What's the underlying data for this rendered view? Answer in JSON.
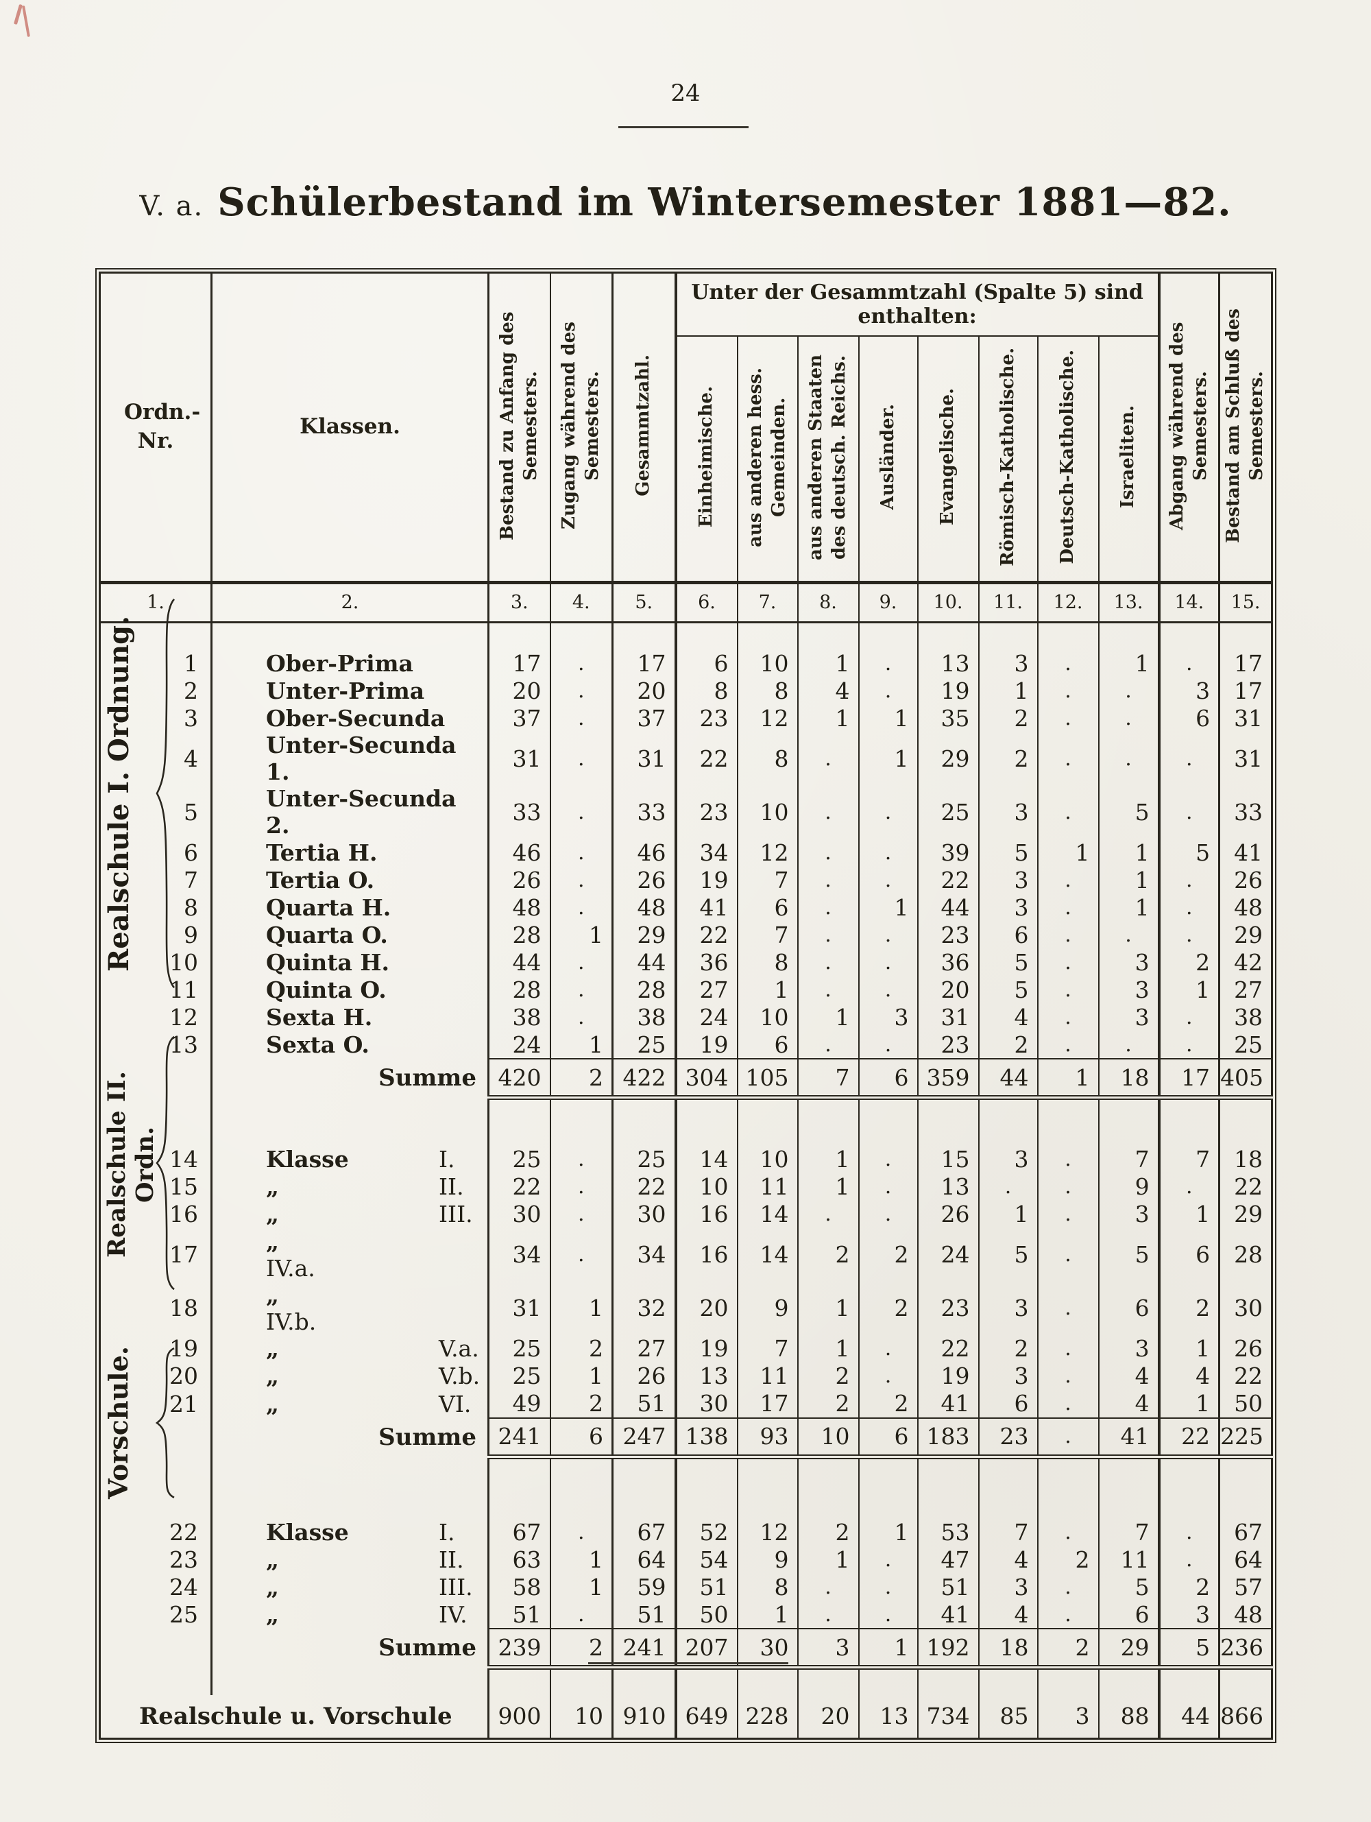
{
  "page": {
    "number": "24"
  },
  "title": {
    "prefix": "V. a.",
    "main": "Schülerbestand im Wintersemester 1881—82."
  },
  "table": {
    "header": {
      "ordn_nr": "Ordn.- Nr.",
      "klassen": "Klassen.",
      "col3": "Bestand zu Anfang des Semesters.",
      "col4": "Zugang während des Semesters.",
      "col5": "Gesammtzahl.",
      "group": "Unter der Gesammtzahl (Spalte 5) sind enthalten:",
      "col6": "Einheimische.",
      "col7": "aus anderen hess. Gemeinden.",
      "col8": "aus anderen Staaten des deutsch. Reichs.",
      "col9": "Ausländer.",
      "col10": "Evangelische.",
      "col11": "Römisch-Katholische.",
      "col12": "Deutsch-Katholische.",
      "col13": "Israeliten.",
      "col14": "Abgang während des Semesters.",
      "col15": "Bestand am Schluß des Semesters.",
      "numbers": [
        "1.",
        "2.",
        "3.",
        "4.",
        "5.",
        "6.",
        "7.",
        "8.",
        "9.",
        "10.",
        "11.",
        "12.",
        "13.",
        "14.",
        "15."
      ]
    },
    "sections": [
      {
        "group_label": "Realschule I. Ordnung.",
        "rows": [
          {
            "nr": "1",
            "klasse_a": "Ober-Prima",
            "klasse_b": "",
            "values": [
              "17",
              ".",
              "17",
              "6",
              "10",
              "1",
              ".",
              "13",
              "3",
              ".",
              "1",
              ".",
              "17"
            ]
          },
          {
            "nr": "2",
            "klasse_a": "Unter-Prima",
            "klasse_b": "",
            "values": [
              "20",
              ".",
              "20",
              "8",
              "8",
              "4",
              ".",
              "19",
              "1",
              ".",
              ".",
              "3",
              "17"
            ]
          },
          {
            "nr": "3",
            "klasse_a": "Ober-Secunda",
            "klasse_b": "",
            "values": [
              "37",
              ".",
              "37",
              "23",
              "12",
              "1",
              "1",
              "35",
              "2",
              ".",
              ".",
              "6",
              "31"
            ]
          },
          {
            "nr": "4",
            "klasse_a": "Unter-Secunda 1.",
            "klasse_b": "",
            "values": [
              "31",
              ".",
              "31",
              "22",
              "8",
              ".",
              "1",
              "29",
              "2",
              ".",
              ".",
              ".",
              "31"
            ]
          },
          {
            "nr": "5",
            "klasse_a": "Unter-Secunda 2.",
            "klasse_b": "",
            "values": [
              "33",
              ".",
              "33",
              "23",
              "10",
              ".",
              ".",
              "25",
              "3",
              ".",
              "5",
              ".",
              "33"
            ]
          },
          {
            "nr": "6",
            "klasse_a": "Tertia H.",
            "klasse_b": "",
            "values": [
              "46",
              ".",
              "46",
              "34",
              "12",
              ".",
              ".",
              "39",
              "5",
              "1",
              "1",
              "5",
              "41"
            ]
          },
          {
            "nr": "7",
            "klasse_a": "Tertia O.",
            "klasse_b": "",
            "values": [
              "26",
              ".",
              "26",
              "19",
              "7",
              ".",
              ".",
              "22",
              "3",
              ".",
              "1",
              ".",
              "26"
            ]
          },
          {
            "nr": "8",
            "klasse_a": "Quarta H.",
            "klasse_b": "",
            "values": [
              "48",
              ".",
              "48",
              "41",
              "6",
              ".",
              "1",
              "44",
              "3",
              ".",
              "1",
              ".",
              "48"
            ]
          },
          {
            "nr": "9",
            "klasse_a": "Quarta O.",
            "klasse_b": "",
            "values": [
              "28",
              "1",
              "29",
              "22",
              "7",
              ".",
              ".",
              "23",
              "6",
              ".",
              ".",
              ".",
              "29"
            ]
          },
          {
            "nr": "10",
            "klasse_a": "Quinta H.",
            "klasse_b": "",
            "values": [
              "44",
              ".",
              "44",
              "36",
              "8",
              ".",
              ".",
              "36",
              "5",
              ".",
              "3",
              "2",
              "42"
            ]
          },
          {
            "nr": "11",
            "klasse_a": "Quinta O.",
            "klasse_b": "",
            "values": [
              "28",
              ".",
              "28",
              "27",
              "1",
              ".",
              ".",
              "20",
              "5",
              ".",
              "3",
              "1",
              "27"
            ]
          },
          {
            "nr": "12",
            "klasse_a": "Sexta H.",
            "klasse_b": "",
            "values": [
              "38",
              ".",
              "38",
              "24",
              "10",
              "1",
              "3",
              "31",
              "4",
              ".",
              "3",
              ".",
              "38"
            ]
          },
          {
            "nr": "13",
            "klasse_a": "Sexta O.",
            "klasse_b": "",
            "values": [
              "24",
              "1",
              "25",
              "19",
              "6",
              ".",
              ".",
              "23",
              "2",
              ".",
              ".",
              ".",
              "25"
            ]
          }
        ],
        "summe": {
          "label": "Summe",
          "values": [
            "420",
            "2",
            "422",
            "304",
            "105",
            "7",
            "6",
            "359",
            "44",
            "1",
            "18",
            "17",
            "405"
          ]
        }
      },
      {
        "group_label": "Realschule II. Ordn.",
        "rows": [
          {
            "nr": "14",
            "klasse_a": "Klasse",
            "klasse_b": "I.",
            "values": [
              "25",
              ".",
              "25",
              "14",
              "10",
              "1",
              ".",
              "15",
              "3",
              ".",
              "7",
              "7",
              "18"
            ]
          },
          {
            "nr": "15",
            "klasse_a": "„",
            "klasse_b": "II.",
            "values": [
              "22",
              ".",
              "22",
              "10",
              "11",
              "1",
              ".",
              "13",
              ".",
              ".",
              "9",
              ".",
              "22"
            ]
          },
          {
            "nr": "16",
            "klasse_a": "„",
            "klasse_b": "III.",
            "values": [
              "30",
              ".",
              "30",
              "16",
              "14",
              ".",
              ".",
              "26",
              "1",
              ".",
              "3",
              "1",
              "29"
            ]
          },
          {
            "nr": "17",
            "klasse_a": "„",
            "klasse_b": "IV.a.",
            "values": [
              "34",
              ".",
              "34",
              "16",
              "14",
              "2",
              "2",
              "24",
              "5",
              ".",
              "5",
              "6",
              "28"
            ]
          },
          {
            "nr": "18",
            "klasse_a": "„",
            "klasse_b": "IV.b.",
            "values": [
              "31",
              "1",
              "32",
              "20",
              "9",
              "1",
              "2",
              "23",
              "3",
              ".",
              "6",
              "2",
              "30"
            ]
          },
          {
            "nr": "19",
            "klasse_a": "„",
            "klasse_b": "V.a.",
            "values": [
              "25",
              "2",
              "27",
              "19",
              "7",
              "1",
              ".",
              "22",
              "2",
              ".",
              "3",
              "1",
              "26"
            ]
          },
          {
            "nr": "20",
            "klasse_a": "„",
            "klasse_b": "V.b.",
            "values": [
              "25",
              "1",
              "26",
              "13",
              "11",
              "2",
              ".",
              "19",
              "3",
              ".",
              "4",
              "4",
              "22"
            ]
          },
          {
            "nr": "21",
            "klasse_a": "„",
            "klasse_b": "VI.",
            "values": [
              "49",
              "2",
              "51",
              "30",
              "17",
              "2",
              "2",
              "41",
              "6",
              ".",
              "4",
              "1",
              "50"
            ]
          }
        ],
        "summe": {
          "label": "Summe",
          "values": [
            "241",
            "6",
            "247",
            "138",
            "93",
            "10",
            "6",
            "183",
            "23",
            ".",
            "41",
            "22",
            "225"
          ]
        }
      },
      {
        "group_label": "Vorschule.",
        "rows": [
          {
            "nr": "22",
            "klasse_a": "Klasse",
            "klasse_b": "I.",
            "values": [
              "67",
              ".",
              "67",
              "52",
              "12",
              "2",
              "1",
              "53",
              "7",
              ".",
              "7",
              ".",
              "67"
            ]
          },
          {
            "nr": "23",
            "klasse_a": "„",
            "klasse_b": "II.",
            "values": [
              "63",
              "1",
              "64",
              "54",
              "9",
              "1",
              ".",
              "47",
              "4",
              "2",
              "11",
              ".",
              "64"
            ]
          },
          {
            "nr": "24",
            "klasse_a": "„",
            "klasse_b": "III.",
            "values": [
              "58",
              "1",
              "59",
              "51",
              "8",
              ".",
              ".",
              "51",
              "3",
              ".",
              "5",
              "2",
              "57"
            ]
          },
          {
            "nr": "25",
            "klasse_a": "„",
            "klasse_b": "IV.",
            "values": [
              "51",
              ".",
              "51",
              "50",
              "1",
              ".",
              ".",
              "41",
              "4",
              ".",
              "6",
              "3",
              "48"
            ]
          }
        ],
        "summe": {
          "label": "Summe",
          "values": [
            "239",
            "2",
            "241",
            "207",
            "30",
            "3",
            "1",
            "192",
            "18",
            "2",
            "29",
            "5",
            "236"
          ]
        }
      }
    ],
    "total": {
      "label": "Realschule u. Vorschule",
      "values": [
        "900",
        "10",
        "910",
        "649",
        "228",
        "20",
        "13",
        "734",
        "85",
        "3",
        "88",
        "44",
        "866"
      ]
    }
  }
}
